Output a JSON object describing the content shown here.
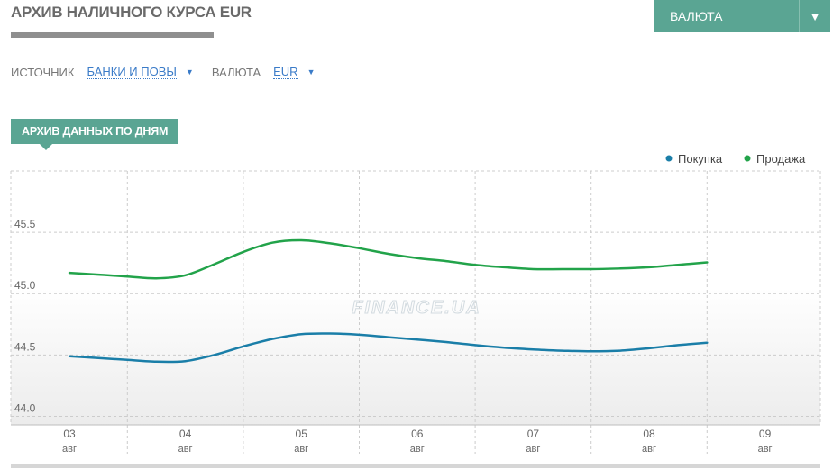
{
  "header": {
    "title": "АРХИВ НАЛИЧНОГО КУРСА EUR",
    "currency_button": "ВАЛЮТА",
    "currency_button_arrow": "▼"
  },
  "filters": {
    "source_label": "ИСТОЧНИК",
    "source_value": "БАНКИ И ПОВЫ",
    "currency_label": "ВАЛЮТА",
    "currency_value": "EUR",
    "caret": "▼"
  },
  "section": {
    "tab_label": "АРХИВ ДАННЫХ ПО ДНЯМ"
  },
  "watermark": "FINANCE.UA",
  "colors": {
    "accent": "#5aa593",
    "buy": "#1a7ea8",
    "sell": "#22a34a",
    "grid": "#cccccc"
  },
  "chart_data": {
    "type": "line",
    "categories": [
      {
        "day": "03",
        "month": "авг"
      },
      {
        "day": "04",
        "month": "авг"
      },
      {
        "day": "05",
        "month": "авг"
      },
      {
        "day": "06",
        "month": "авг"
      },
      {
        "day": "07",
        "month": "авг"
      },
      {
        "day": "08",
        "month": "авг"
      },
      {
        "day": "09",
        "month": "авг"
      }
    ],
    "x": [
      0,
      0.25,
      0.5,
      0.75,
      1,
      1.25,
      1.5,
      1.75,
      2,
      2.25,
      2.5,
      2.75,
      3,
      3.25,
      3.5,
      3.75,
      4,
      4.25,
      4.5,
      4.75,
      5,
      5.25,
      5.5
    ],
    "series": [
      {
        "name": "Покупка",
        "color": "#1a7ea8",
        "values": [
          44.49,
          44.475,
          44.46,
          44.445,
          44.45,
          44.5,
          44.57,
          44.63,
          44.67,
          44.675,
          44.665,
          44.645,
          44.625,
          44.605,
          44.58,
          44.56,
          44.545,
          44.535,
          44.53,
          44.535,
          44.555,
          44.58,
          44.6
        ]
      },
      {
        "name": "Продажа",
        "color": "#22a34a",
        "values": [
          45.17,
          45.155,
          45.14,
          45.125,
          45.15,
          45.24,
          45.34,
          45.415,
          45.435,
          45.41,
          45.37,
          45.325,
          45.29,
          45.265,
          45.235,
          45.215,
          45.2,
          45.2,
          45.2,
          45.205,
          45.215,
          45.235,
          45.255
        ]
      }
    ],
    "yticks": [
      44.0,
      44.5,
      45.0,
      45.5
    ],
    "ylim": [
      43.93,
      46.0
    ],
    "grid": true,
    "legend_position": "top-right"
  }
}
